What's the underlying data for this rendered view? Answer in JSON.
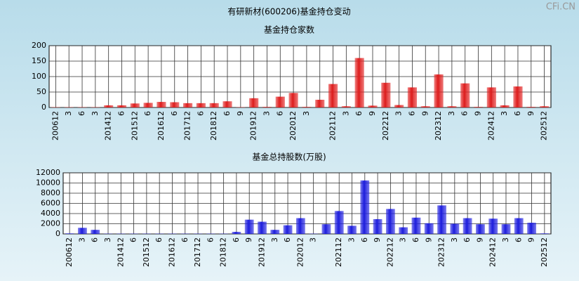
{
  "page_title": "有研新材(600206)基金持仓变动",
  "watermark": "CFi.CN",
  "chart_data": [
    {
      "type": "bar",
      "title": "基金持仓家数",
      "color": "#e02020",
      "grid": true,
      "categories": [
        "200612",
        "3",
        "6",
        "3",
        "201412",
        "6",
        "201512",
        "6",
        "201612",
        "6",
        "201712",
        "6",
        "201812",
        "6",
        "9",
        "201912",
        "3",
        "6",
        "202012",
        "3",
        null,
        "202112",
        "3",
        "6",
        "9",
        "202212",
        "3",
        "6",
        "9",
        "202312",
        "3",
        "6",
        "9",
        "202412",
        "3",
        "6",
        "9",
        "202512"
      ],
      "values": [
        1,
        1,
        1,
        1,
        7,
        7,
        13,
        15,
        18,
        17,
        14,
        14,
        14,
        20,
        1,
        30,
        2,
        35,
        47,
        2,
        25,
        76,
        4,
        160,
        6,
        80,
        8,
        65,
        4,
        107,
        4,
        78,
        2,
        65,
        7,
        68,
        2,
        4
      ],
      "ylim": [
        0,
        200
      ],
      "yticks": [
        0,
        50,
        100,
        150,
        200
      ]
    },
    {
      "type": "bar",
      "title": "基金总持股数(万股)",
      "color": "#2020e0",
      "grid": true,
      "categories": [
        "200612",
        "3",
        "6",
        "3",
        "201412",
        "6",
        "201512",
        "6",
        "201612",
        "6",
        "201712",
        "6",
        "201812",
        "6",
        "9",
        "201912",
        "3",
        "6",
        "202012",
        "3",
        null,
        "202112",
        "3",
        "6",
        "9",
        "202212",
        "3",
        "6",
        "9",
        "202312",
        "3",
        "6",
        "9",
        "202412",
        "3",
        "6",
        "9",
        "202512"
      ],
      "values": [
        100,
        1200,
        800,
        50,
        50,
        50,
        50,
        50,
        50,
        50,
        50,
        50,
        50,
        400,
        2800,
        2400,
        800,
        1700,
        3100,
        50,
        1900,
        4500,
        1600,
        10500,
        2900,
        4900,
        1300,
        3200,
        2100,
        5600,
        2000,
        3100,
        1900,
        3000,
        1900,
        3100,
        2200,
        100
      ],
      "ylim": [
        0,
        12000
      ],
      "yticks": [
        0,
        2000,
        4000,
        6000,
        8000,
        10000,
        12000
      ]
    }
  ]
}
